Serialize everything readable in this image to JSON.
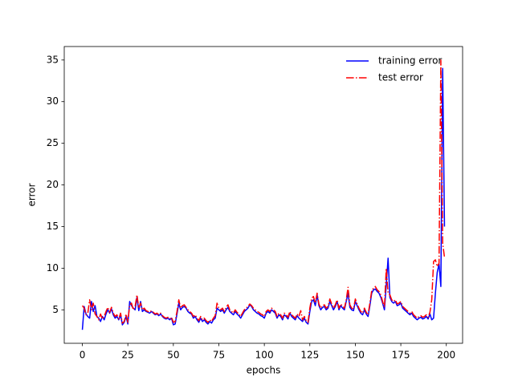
{
  "chart_data": {
    "type": "line",
    "x_label": "epochs",
    "y_label": "error",
    "x": [
      0,
      1,
      2,
      3,
      4,
      5,
      6,
      7,
      8,
      9,
      10,
      11,
      12,
      13,
      14,
      15,
      16,
      17,
      18,
      19,
      20,
      21,
      22,
      23,
      24,
      25,
      26,
      27,
      28,
      29,
      30,
      31,
      32,
      33,
      34,
      35,
      36,
      37,
      38,
      39,
      40,
      41,
      42,
      43,
      44,
      45,
      46,
      47,
      48,
      49,
      50,
      51,
      52,
      53,
      54,
      55,
      56,
      57,
      58,
      59,
      60,
      61,
      62,
      63,
      64,
      65,
      66,
      67,
      68,
      69,
      70,
      71,
      72,
      73,
      74,
      75,
      76,
      77,
      78,
      79,
      80,
      81,
      82,
      83,
      84,
      85,
      86,
      87,
      88,
      89,
      90,
      91,
      92,
      93,
      94,
      95,
      96,
      97,
      98,
      99,
      100,
      101,
      102,
      103,
      104,
      105,
      106,
      107,
      108,
      109,
      110,
      111,
      112,
      113,
      114,
      115,
      116,
      117,
      118,
      119,
      120,
      121,
      122,
      123,
      124,
      125,
      126,
      127,
      128,
      129,
      130,
      131,
      132,
      133,
      134,
      135,
      136,
      137,
      138,
      139,
      140,
      141,
      142,
      143,
      144,
      145,
      146,
      147,
      148,
      149,
      150,
      151,
      152,
      153,
      154,
      155,
      156,
      157,
      158,
      159,
      160,
      161,
      162,
      163,
      164,
      165,
      166,
      167,
      168,
      169,
      170,
      171,
      172,
      173,
      174,
      175,
      176,
      177,
      178,
      179,
      180,
      181,
      182,
      183,
      184,
      185,
      186,
      187,
      188,
      189,
      190,
      191,
      192,
      193,
      194,
      195,
      196,
      197,
      198,
      199
    ],
    "series": [
      {
        "name": "training error",
        "color": "#0000ff",
        "style": "solid",
        "values": [
          2.6,
          5.4,
          4.5,
          4.2,
          4.0,
          6.0,
          4.8,
          5.5,
          4.2,
          4.0,
          3.6,
          4.2,
          3.8,
          4.5,
          5.0,
          4.6,
          5.1,
          4.4,
          4.0,
          4.2,
          3.8,
          4.4,
          3.2,
          3.5,
          4.2,
          3.3,
          6.0,
          5.5,
          5.2,
          5.0,
          6.5,
          4.9,
          6.0,
          4.8,
          5.0,
          4.8,
          4.7,
          4.6,
          4.8,
          4.6,
          4.4,
          4.5,
          4.3,
          4.5,
          4.2,
          4.0,
          3.9,
          4.0,
          3.8,
          4.0,
          3.2,
          3.3,
          4.5,
          5.8,
          5.0,
          5.3,
          5.4,
          5.2,
          4.8,
          4.6,
          4.5,
          4.0,
          4.2,
          3.8,
          3.5,
          4.0,
          3.6,
          3.8,
          3.5,
          3.3,
          3.6,
          3.4,
          3.8,
          4.0,
          5.2,
          5.0,
          4.8,
          5.0,
          4.6,
          5.0,
          5.3,
          4.8,
          4.6,
          4.4,
          4.8,
          4.5,
          4.3,
          4.0,
          4.4,
          4.8,
          5.0,
          5.2,
          5.6,
          5.4,
          5.0,
          4.8,
          4.6,
          4.5,
          4.3,
          4.2,
          4.0,
          4.6,
          4.8,
          4.6,
          5.0,
          4.8,
          4.6,
          4.0,
          4.4,
          4.2,
          3.8,
          4.4,
          4.2,
          3.9,
          4.6,
          4.2,
          4.0,
          3.8,
          4.3,
          4.0,
          3.8,
          3.6,
          4.0,
          3.5,
          3.3,
          4.8,
          6.0,
          6.2,
          5.5,
          6.8,
          5.5,
          5.0,
          5.3,
          5.4,
          5.0,
          5.2,
          6.0,
          5.5,
          5.0,
          5.4,
          6.0,
          5.0,
          5.5,
          5.2,
          5.0,
          6.0,
          7.0,
          5.3,
          5.0,
          4.9,
          6.0,
          5.5,
          5.0,
          4.6,
          4.4,
          5.0,
          4.5,
          4.2,
          5.5,
          7.0,
          7.4,
          7.5,
          7.2,
          7.0,
          6.5,
          5.8,
          5.0,
          8.0,
          11.2,
          6.5,
          6.0,
          5.8,
          6.0,
          5.5,
          5.6,
          5.8,
          5.2,
          5.0,
          4.8,
          4.6,
          4.4,
          4.6,
          4.2,
          4.0,
          3.8,
          4.0,
          4.1,
          3.9,
          4.0,
          4.2,
          3.9,
          4.5,
          3.8,
          4.0,
          7.0,
          9.5,
          10.5,
          7.8,
          34.0,
          15.0
        ]
      },
      {
        "name": "test error",
        "color": "#ff0000",
        "style": "dashdot",
        "values": [
          5.5,
          5.2,
          4.4,
          4.6,
          6.2,
          5.0,
          5.8,
          4.5,
          4.2,
          3.8,
          4.5,
          3.9,
          4.2,
          4.8,
          5.3,
          4.7,
          5.3,
          4.6,
          4.2,
          4.4,
          3.9,
          4.6,
          3.4,
          3.6,
          4.5,
          3.5,
          5.6,
          5.8,
          5.0,
          5.4,
          6.8,
          5.2,
          5.8,
          5.0,
          5.2,
          4.9,
          4.8,
          4.7,
          4.9,
          4.7,
          4.5,
          4.6,
          4.4,
          4.6,
          4.3,
          4.1,
          4.0,
          4.1,
          3.9,
          4.1,
          3.5,
          3.6,
          4.8,
          6.2,
          5.2,
          5.5,
          5.6,
          5.3,
          5.0,
          4.8,
          4.6,
          4.2,
          4.4,
          4.0,
          3.7,
          4.2,
          3.8,
          4.0,
          3.7,
          3.5,
          3.8,
          3.6,
          4.0,
          4.3,
          5.8,
          5.2,
          5.0,
          5.2,
          4.8,
          5.3,
          5.6,
          5.0,
          4.8,
          4.6,
          5.0,
          4.7,
          4.5,
          4.2,
          4.6,
          5.0,
          5.2,
          5.4,
          5.7,
          5.5,
          5.2,
          5.0,
          4.8,
          4.7,
          4.5,
          4.4,
          4.2,
          4.8,
          5.0,
          4.8,
          5.2,
          5.0,
          4.8,
          4.2,
          4.6,
          4.4,
          4.0,
          4.6,
          4.4,
          4.1,
          4.8,
          4.4,
          4.2,
          4.0,
          4.5,
          4.2,
          4.9,
          3.8,
          4.2,
          3.7,
          3.5,
          5.2,
          6.4,
          6.6,
          5.8,
          7.0,
          5.7,
          5.2,
          5.5,
          5.6,
          5.2,
          5.4,
          6.3,
          5.7,
          5.2,
          5.6,
          6.2,
          5.2,
          5.7,
          5.4,
          5.2,
          6.2,
          7.7,
          5.6,
          5.2,
          5.1,
          6.3,
          5.7,
          5.2,
          4.8,
          4.6,
          5.2,
          4.7,
          4.4,
          5.8,
          7.3,
          7.6,
          7.8,
          7.4,
          7.2,
          6.8,
          6.0,
          5.3,
          10.0,
          7.0,
          6.8,
          6.2,
          6.0,
          6.2,
          5.7,
          5.8,
          6.0,
          5.4,
          5.2,
          5.0,
          4.8,
          4.6,
          4.8,
          4.4,
          4.2,
          4.0,
          4.2,
          4.3,
          4.1,
          4.2,
          4.4,
          4.1,
          4.7,
          6.2,
          10.8,
          11.0,
          10.2,
          10.6,
          35.0,
          13.0,
          11.3
        ]
      }
    ],
    "xlim": [
      -9.95,
      208.95
    ],
    "ylim": [
      0.98,
      36.62
    ],
    "xticks": [
      0,
      25,
      50,
      75,
      100,
      125,
      150,
      175,
      200
    ],
    "yticks": [
      5,
      10,
      15,
      20,
      25,
      30,
      35
    ],
    "legend": "upper right"
  }
}
